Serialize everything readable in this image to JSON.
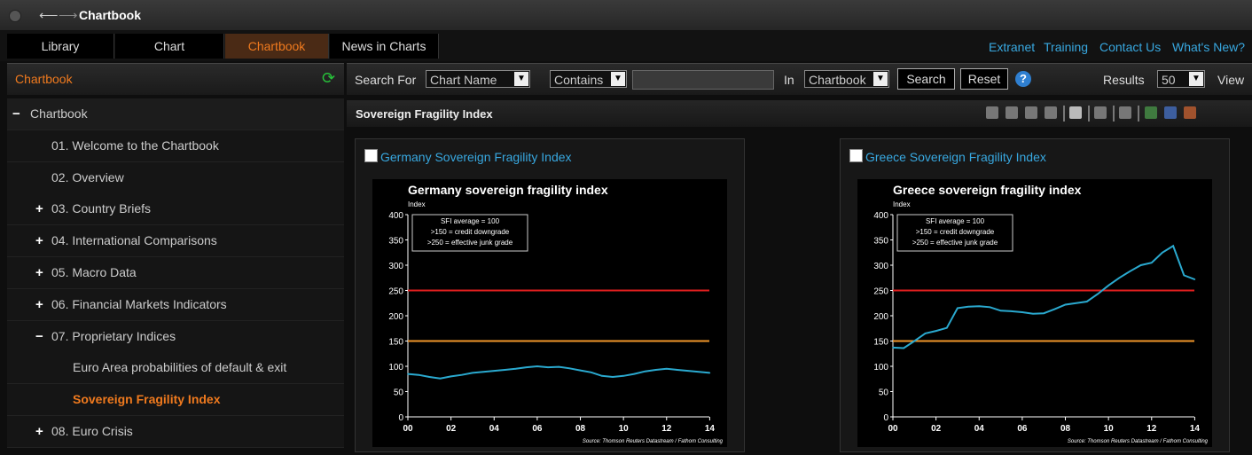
{
  "window": {
    "title": "Chartbook"
  },
  "tabs": [
    {
      "label": "Library",
      "active": false
    },
    {
      "label": "Chart",
      "active": false
    },
    {
      "label": "Chartbook",
      "active": true
    },
    {
      "label": "News in Charts",
      "active": false
    }
  ],
  "top_links": [
    "Extranet",
    "Training",
    "Contact Us",
    "What's New?"
  ],
  "sidebar": {
    "header": "Chartbook",
    "tree": [
      {
        "sign": "−",
        "label": "Chartbook",
        "level": 0,
        "active": false
      },
      {
        "sign": "",
        "label": "01. Welcome to the Chartbook",
        "level": 1,
        "active": false
      },
      {
        "sign": "",
        "label": "02. Overview",
        "level": 1,
        "active": false
      },
      {
        "sign": "+",
        "label": "03. Country Briefs",
        "level": 1,
        "active": false
      },
      {
        "sign": "+",
        "label": "04. International Comparisons",
        "level": 1,
        "active": false
      },
      {
        "sign": "+",
        "label": "05. Macro Data",
        "level": 1,
        "active": false
      },
      {
        "sign": "+",
        "label": "06. Financial Markets Indicators",
        "level": 1,
        "active": false
      },
      {
        "sign": "−",
        "label": "07. Proprietary Indices",
        "level": 1,
        "active": false
      },
      {
        "sign": "",
        "label": "Euro Area probabilities of default & exit",
        "level": 2,
        "active": false
      },
      {
        "sign": "",
        "label": "Sovereign Fragility Index",
        "level": 2,
        "active": true
      },
      {
        "sign": "+",
        "label": "08. Euro Crisis",
        "level": 1,
        "active": false
      }
    ]
  },
  "search": {
    "search_for_label": "Search For",
    "field_select": "Chart Name",
    "mode_select": "Contains",
    "query": "",
    "in_label": "In",
    "in_select": "Chartbook",
    "search_button": "Search",
    "reset_button": "Reset",
    "help": "?",
    "results_label": "Results",
    "results_select": "50",
    "view_label": "View"
  },
  "section": {
    "title": "Sovereign Fragility Index"
  },
  "cards": [
    {
      "link": "Germany Sovereign Fragility Index"
    },
    {
      "link": "Greece Sovereign Fragility Index"
    }
  ],
  "colors": {
    "accent": "#f07a1e",
    "link": "#38a8e0",
    "series": "#2aa9cf",
    "junk": "#e01e1e",
    "downgrade": "#f0962a"
  },
  "chart_data": [
    {
      "type": "line",
      "title": "Germany sovereign fragility index",
      "ylabel": "Index",
      "ylim": [
        0,
        400
      ],
      "xlim": [
        0,
        14.6
      ],
      "yticks": [
        "0",
        "50",
        "100",
        "150",
        "200",
        "250",
        "300",
        "350",
        "400"
      ],
      "xticks": [
        "00",
        "02",
        "04",
        "06",
        "08",
        "10",
        "12",
        "14"
      ],
      "legend_lines": [
        "SFI average = 100",
        ">150 = credit downgrade",
        ">250 = effective junk grade"
      ],
      "source": "Source: Thomson Reuters Datastream / Fathom Consulting",
      "ref_lines": [
        {
          "y": 250,
          "color": "#e01e1e"
        },
        {
          "y": 150,
          "color": "#f0962a"
        }
      ],
      "series": [
        {
          "x": [
            0,
            0.5,
            1,
            1.5,
            2,
            2.5,
            3,
            3.5,
            4,
            4.5,
            5,
            5.5,
            6,
            6.5,
            7,
            7.5,
            8,
            8.5,
            9,
            9.5,
            10,
            10.5,
            11,
            11.5,
            12,
            12.5,
            13,
            13.5,
            14
          ],
          "y": [
            85,
            83,
            79,
            76,
            80,
            83,
            87,
            89,
            91,
            93,
            95,
            98,
            100,
            98,
            99,
            96,
            92,
            88,
            81,
            79,
            81,
            85,
            90,
            93,
            95,
            93,
            91,
            89,
            87
          ]
        }
      ]
    },
    {
      "type": "line",
      "title": "Greece sovereign fragility index",
      "ylabel": "Index",
      "ylim": [
        0,
        400
      ],
      "xlim": [
        0,
        14.6
      ],
      "yticks": [
        "0",
        "50",
        "100",
        "150",
        "200",
        "250",
        "300",
        "350",
        "400"
      ],
      "xticks": [
        "00",
        "02",
        "04",
        "06",
        "08",
        "10",
        "12",
        "14"
      ],
      "legend_lines": [
        "SFI average = 100",
        ">150 = credit downgrade",
        ">250 = effective junk grade"
      ],
      "source": "Source: Thomson Reuters Datastream / Fathom Consulting",
      "ref_lines": [
        {
          "y": 250,
          "color": "#e01e1e"
        },
        {
          "y": 150,
          "color": "#f0962a"
        }
      ],
      "series": [
        {
          "x": [
            0,
            0.5,
            1,
            1.5,
            2,
            2.5,
            3,
            3.5,
            4,
            4.5,
            5,
            5.5,
            6,
            6.5,
            7,
            7.5,
            8,
            8.5,
            9,
            9.5,
            10,
            10.5,
            11,
            11.5,
            12,
            12.5,
            13,
            13.5,
            14
          ],
          "y": [
            137,
            136,
            150,
            165,
            170,
            176,
            215,
            218,
            219,
            217,
            210,
            209,
            207,
            204,
            205,
            213,
            222,
            225,
            228,
            243,
            260,
            275,
            288,
            300,
            305,
            325,
            338,
            280,
            272
          ]
        }
      ]
    }
  ]
}
